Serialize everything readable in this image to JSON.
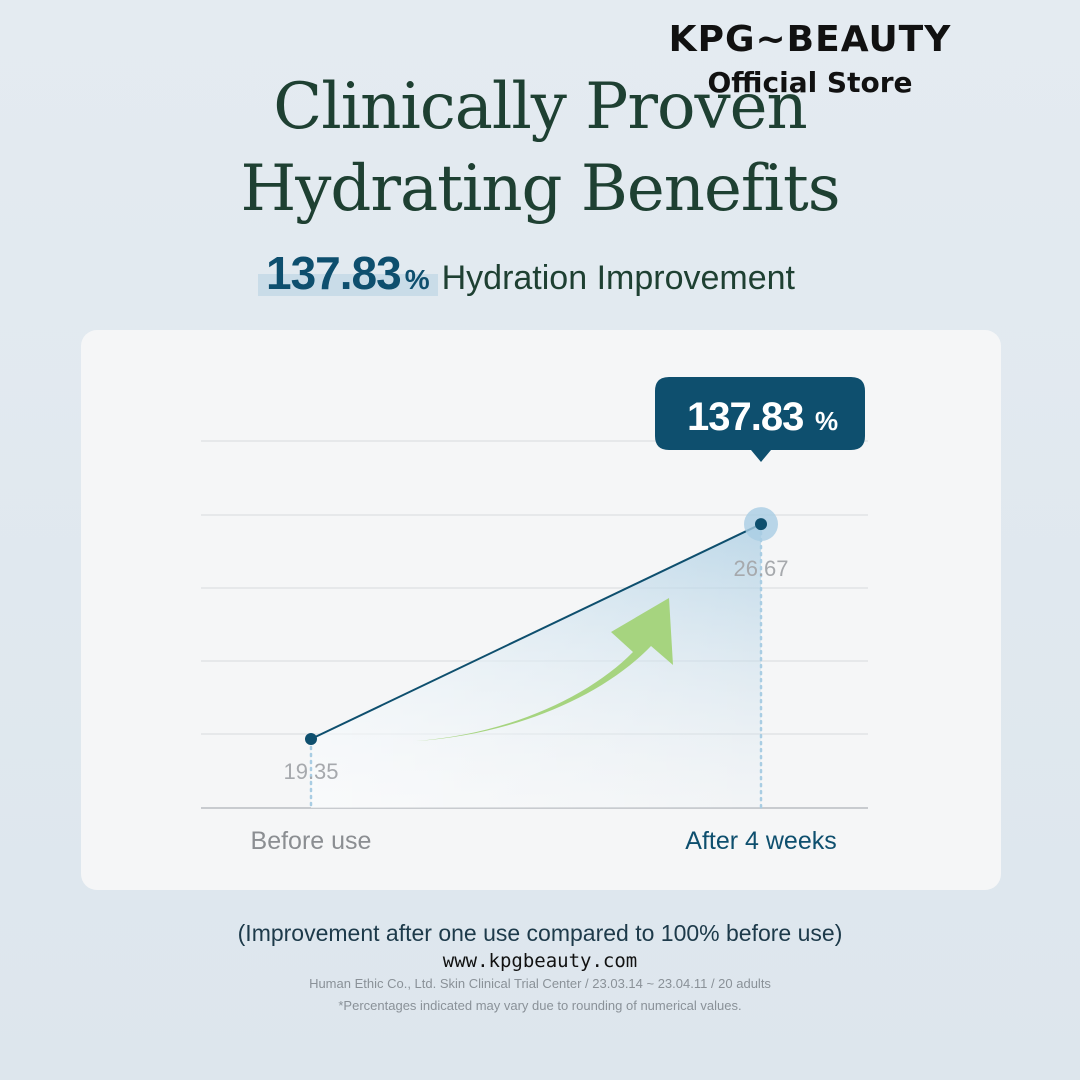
{
  "brand": {
    "name": "KPG~BEAUTY",
    "subtitle": "Official Store"
  },
  "headline": {
    "line1": "Clinically Proven",
    "line2": "Hydrating Benefits"
  },
  "subhead": {
    "number": "137.83",
    "unit": "%",
    "text": "Hydration Improvement"
  },
  "colors": {
    "navy": "#0e4f6e",
    "dark_green": "#1e4032",
    "arrow_green": "#a6d47f",
    "fill_blue": "#b7d6e9"
  },
  "chart_data": {
    "type": "line",
    "categories": [
      "Before use",
      "After 4 weeks"
    ],
    "values": [
      19.35,
      26.67
    ],
    "value_labels": [
      "19.35",
      "26.67"
    ],
    "callout": {
      "value": "137.83",
      "unit": "%"
    },
    "grid": true,
    "title": "",
    "xlabel": "",
    "ylabel": ""
  },
  "footer": {
    "note": "(Improvement after one use compared to 100% before use)",
    "url": "www.kpgbeauty.com",
    "source": "Human Ethic Co., Ltd. Skin Clinical Trial Center / 23.03.14 ~ 23.04.11 / 20 adults",
    "disclaimer": "*Percentages indicated may vary due to rounding of numerical values."
  }
}
